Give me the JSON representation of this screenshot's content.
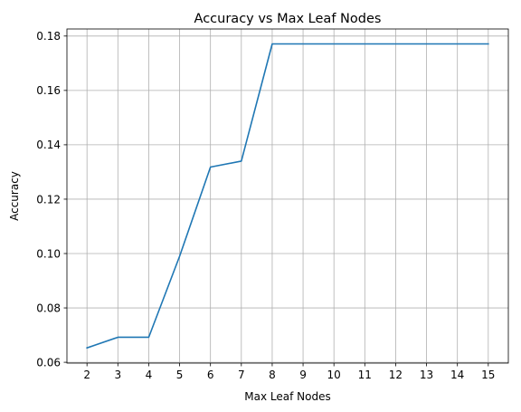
{
  "chart_data": {
    "type": "line",
    "title": "Accuracy vs Max Leaf Nodes",
    "xlabel": "Max Leaf Nodes",
    "ylabel": "Accuracy",
    "x": [
      2,
      3,
      4,
      5,
      6,
      7,
      8,
      9,
      10,
      11,
      12,
      13,
      14,
      15
    ],
    "x_ticks": [
      "2",
      "3",
      "4",
      "5",
      "6",
      "7",
      "8",
      "9",
      "10",
      "11",
      "12",
      "13",
      "14",
      "15"
    ],
    "y_ticks": [
      "0.06",
      "0.08",
      "0.10",
      "0.12",
      "0.14",
      "0.16",
      "0.18"
    ],
    "y_tick_values": [
      0.06,
      0.08,
      0.1,
      0.12,
      0.14,
      0.16,
      0.18
    ],
    "series": [
      {
        "values": [
          0.0653,
          0.0692,
          0.0692,
          0.099,
          0.1318,
          0.134,
          0.1771,
          0.1771,
          0.1771,
          0.1771,
          0.1771,
          0.1771,
          0.1771,
          0.1771
        ],
        "color": "#1f77b4"
      }
    ],
    "xlim": [
      1.35,
      15.65
    ],
    "ylim": [
      0.0597,
      0.1826
    ],
    "grid": true
  }
}
